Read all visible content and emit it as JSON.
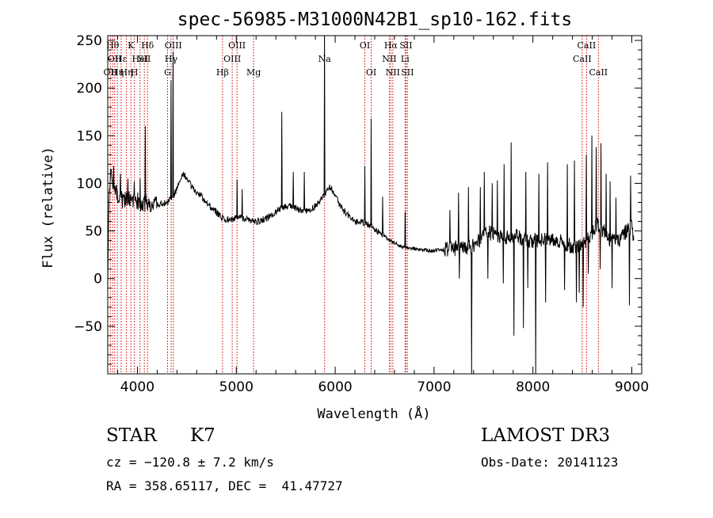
{
  "chart_data": {
    "type": "line",
    "title": "spec-56985-M31000N42B1_sp10-162.fits",
    "xlabel": "Wavelength (Å)",
    "ylabel": "Flux (relative)",
    "xlim": [
      3700,
      9100
    ],
    "ylim": [
      -100,
      255
    ],
    "xticks": [
      4000,
      5000,
      6000,
      7000,
      8000,
      9000
    ],
    "yticks": [
      -50,
      0,
      50,
      100,
      150,
      200,
      250
    ],
    "grid": false,
    "series_color": "#000000",
    "line_marker_color": "#cc0000",
    "continuum": [
      [
        3700,
        0
      ],
      [
        3710,
        70
      ],
      [
        3730,
        125
      ],
      [
        3760,
        95
      ],
      [
        3800,
        88
      ],
      [
        3850,
        82
      ],
      [
        3900,
        85
      ],
      [
        3950,
        80
      ],
      [
        4000,
        82
      ],
      [
        4050,
        78
      ],
      [
        4100,
        80
      ],
      [
        4150,
        78
      ],
      [
        4200,
        77
      ],
      [
        4250,
        78
      ],
      [
        4300,
        80
      ],
      [
        4350,
        85
      ],
      [
        4380,
        90
      ],
      [
        4420,
        100
      ],
      [
        4460,
        110
      ],
      [
        4500,
        106
      ],
      [
        4550,
        96
      ],
      [
        4600,
        90
      ],
      [
        4650,
        86
      ],
      [
        4700,
        80
      ],
      [
        4750,
        74
      ],
      [
        4800,
        70
      ],
      [
        4850,
        64
      ],
      [
        4900,
        62
      ],
      [
        4950,
        62
      ],
      [
        5000,
        63
      ],
      [
        5050,
        64
      ],
      [
        5100,
        62
      ],
      [
        5150,
        60
      ],
      [
        5200,
        60
      ],
      [
        5250,
        61
      ],
      [
        5300,
        63
      ],
      [
        5350,
        66
      ],
      [
        5400,
        70
      ],
      [
        5450,
        74
      ],
      [
        5500,
        76
      ],
      [
        5550,
        76
      ],
      [
        5600,
        74
      ],
      [
        5650,
        72
      ],
      [
        5700,
        71
      ],
      [
        5750,
        72
      ],
      [
        5800,
        76
      ],
      [
        5850,
        82
      ],
      [
        5900,
        90
      ],
      [
        5950,
        96
      ],
      [
        6000,
        88
      ],
      [
        6050,
        76
      ],
      [
        6100,
        70
      ],
      [
        6150,
        65
      ],
      [
        6200,
        60
      ],
      [
        6250,
        60
      ],
      [
        6300,
        58
      ],
      [
        6350,
        55
      ],
      [
        6400,
        52
      ],
      [
        6450,
        48
      ],
      [
        6500,
        44
      ],
      [
        6550,
        40
      ],
      [
        6600,
        37
      ],
      [
        6650,
        35
      ],
      [
        6700,
        33
      ],
      [
        6750,
        32
      ],
      [
        6800,
        31
      ],
      [
        6850,
        30
      ],
      [
        6900,
        30
      ],
      [
        6950,
        29
      ],
      [
        7000,
        29
      ],
      [
        7050,
        30
      ],
      [
        7100,
        30
      ],
      [
        7150,
        31
      ],
      [
        7200,
        31
      ],
      [
        7250,
        32
      ],
      [
        7300,
        32
      ],
      [
        7350,
        33
      ],
      [
        7400,
        35
      ],
      [
        7450,
        40
      ],
      [
        7500,
        46
      ],
      [
        7550,
        48
      ],
      [
        7600,
        47
      ],
      [
        7650,
        44
      ],
      [
        7700,
        43
      ],
      [
        7750,
        44
      ],
      [
        7800,
        45
      ],
      [
        7850,
        44
      ],
      [
        7900,
        42
      ],
      [
        7950,
        41
      ],
      [
        8000,
        40
      ],
      [
        8050,
        40
      ],
      [
        8100,
        42
      ],
      [
        8150,
        43
      ],
      [
        8200,
        42
      ],
      [
        8250,
        40
      ],
      [
        8300,
        38
      ],
      [
        8350,
        36
      ],
      [
        8400,
        34
      ],
      [
        8450,
        35
      ],
      [
        8500,
        36
      ],
      [
        8550,
        42
      ],
      [
        8600,
        48
      ],
      [
        8650,
        58
      ],
      [
        8700,
        52
      ],
      [
        8750,
        44
      ],
      [
        8800,
        40
      ],
      [
        8850,
        38
      ],
      [
        8900,
        44
      ],
      [
        8950,
        50
      ],
      [
        9000,
        55
      ],
      [
        9020,
        40
      ]
    ],
    "spikes": [
      [
        3760,
        118
      ],
      [
        3830,
        110
      ],
      [
        3905,
        105
      ],
      [
        3970,
        102
      ],
      [
        4030,
        105
      ],
      [
        4080,
        160
      ],
      [
        4340,
        208
      ],
      [
        4362,
        238
      ],
      [
        5010,
        104
      ],
      [
        5060,
        94
      ],
      [
        5460,
        175
      ],
      [
        5577,
        112
      ],
      [
        5690,
        112
      ],
      [
        5893,
        255
      ],
      [
        6300,
        118
      ],
      [
        6366,
        168
      ],
      [
        6480,
        86
      ],
      [
        6708,
        70
      ],
      [
        7160,
        72
      ],
      [
        7250,
        90
      ],
      [
        7350,
        96
      ],
      [
        7470,
        96
      ],
      [
        7510,
        112
      ],
      [
        7590,
        100
      ],
      [
        7640,
        103
      ],
      [
        7710,
        120
      ],
      [
        7780,
        143
      ],
      [
        7930,
        112
      ],
      [
        8060,
        110
      ],
      [
        8150,
        122
      ],
      [
        8350,
        120
      ],
      [
        8420,
        124
      ],
      [
        8540,
        130
      ],
      [
        8595,
        150
      ],
      [
        8640,
        138
      ],
      [
        8690,
        142
      ],
      [
        8740,
        110
      ],
      [
        8780,
        102
      ],
      [
        8840,
        85
      ],
      [
        8990,
        108
      ],
      [
        7255,
        0
      ],
      [
        7380,
        -100
      ],
      [
        7545,
        0
      ],
      [
        7700,
        -5
      ],
      [
        7810,
        -60
      ],
      [
        7905,
        -52
      ],
      [
        7950,
        -10
      ],
      [
        8030,
        -100
      ],
      [
        8130,
        -25
      ],
      [
        8320,
        -12
      ],
      [
        8440,
        -25
      ],
      [
        8470,
        -15
      ],
      [
        8510,
        -30
      ],
      [
        8560,
        5
      ],
      [
        8680,
        10
      ],
      [
        8800,
        -10
      ],
      [
        8975,
        -28
      ]
    ],
    "noise_seed": 4253,
    "lines": [
      {
        "wl": 3727,
        "label": "OII",
        "row": 2
      },
      {
        "wl": 3750,
        "label": "Hθ",
        "row": 0
      },
      {
        "wl": 3770,
        "label": "OII",
        "row": 1
      },
      {
        "wl": 3797,
        "label": "Hη",
        "row": 2
      },
      {
        "wl": 3835,
        "label": "Hε",
        "row": 1
      },
      {
        "wl": 3889,
        "label": "Hη",
        "row": 2
      },
      {
        "wl": 3934,
        "label": "K",
        "row": 0
      },
      {
        "wl": 3970,
        "label": "H",
        "row": 2
      },
      {
        "wl": 4026,
        "label": "HeI",
        "row": 1
      },
      {
        "wl": 4070,
        "label": "SII",
        "row": 1
      },
      {
        "wl": 4102,
        "label": "Hδ",
        "row": 0
      },
      {
        "wl": 4305,
        "label": "G",
        "row": 2
      },
      {
        "wl": 4341,
        "label": "Hγ",
        "row": 1
      },
      {
        "wl": 4363,
        "label": "OIII",
        "row": 0
      },
      {
        "wl": 4861,
        "label": "Hβ",
        "row": 2
      },
      {
        "wl": 4959,
        "label": "OIII",
        "row": 1
      },
      {
        "wl": 5007,
        "label": "OIII",
        "row": 0
      },
      {
        "wl": 5175,
        "label": "Mg",
        "row": 2
      },
      {
        "wl": 5893,
        "label": "Na",
        "row": 1
      },
      {
        "wl": 6300,
        "label": "OI",
        "row": 0
      },
      {
        "wl": 6364,
        "label": "OI",
        "row": 2
      },
      {
        "wl": 6548,
        "label": "NII",
        "row": 1
      },
      {
        "wl": 6563,
        "label": "Hα",
        "row": 0
      },
      {
        "wl": 6583,
        "label": "NII",
        "row": 2
      },
      {
        "wl": 6707,
        "label": "Li",
        "row": 1
      },
      {
        "wl": 6716,
        "label": "SII",
        "row": 0
      },
      {
        "wl": 6731,
        "label": "SII",
        "row": 2
      },
      {
        "wl": 8498,
        "label": "CaII",
        "row": 1
      },
      {
        "wl": 8542,
        "label": "CaII",
        "row": 0
      },
      {
        "wl": 8662,
        "label": "CaII",
        "row": 2
      }
    ]
  },
  "info": {
    "object_class": "STAR",
    "subclass": "K7",
    "survey": "LAMOST DR3",
    "redshift_text": "cz = −120.8 ± 7.2 km/s",
    "obs_date": "Obs-Date: 20141123",
    "coords": "RA = 358.65117, DEC =  41.47727"
  }
}
